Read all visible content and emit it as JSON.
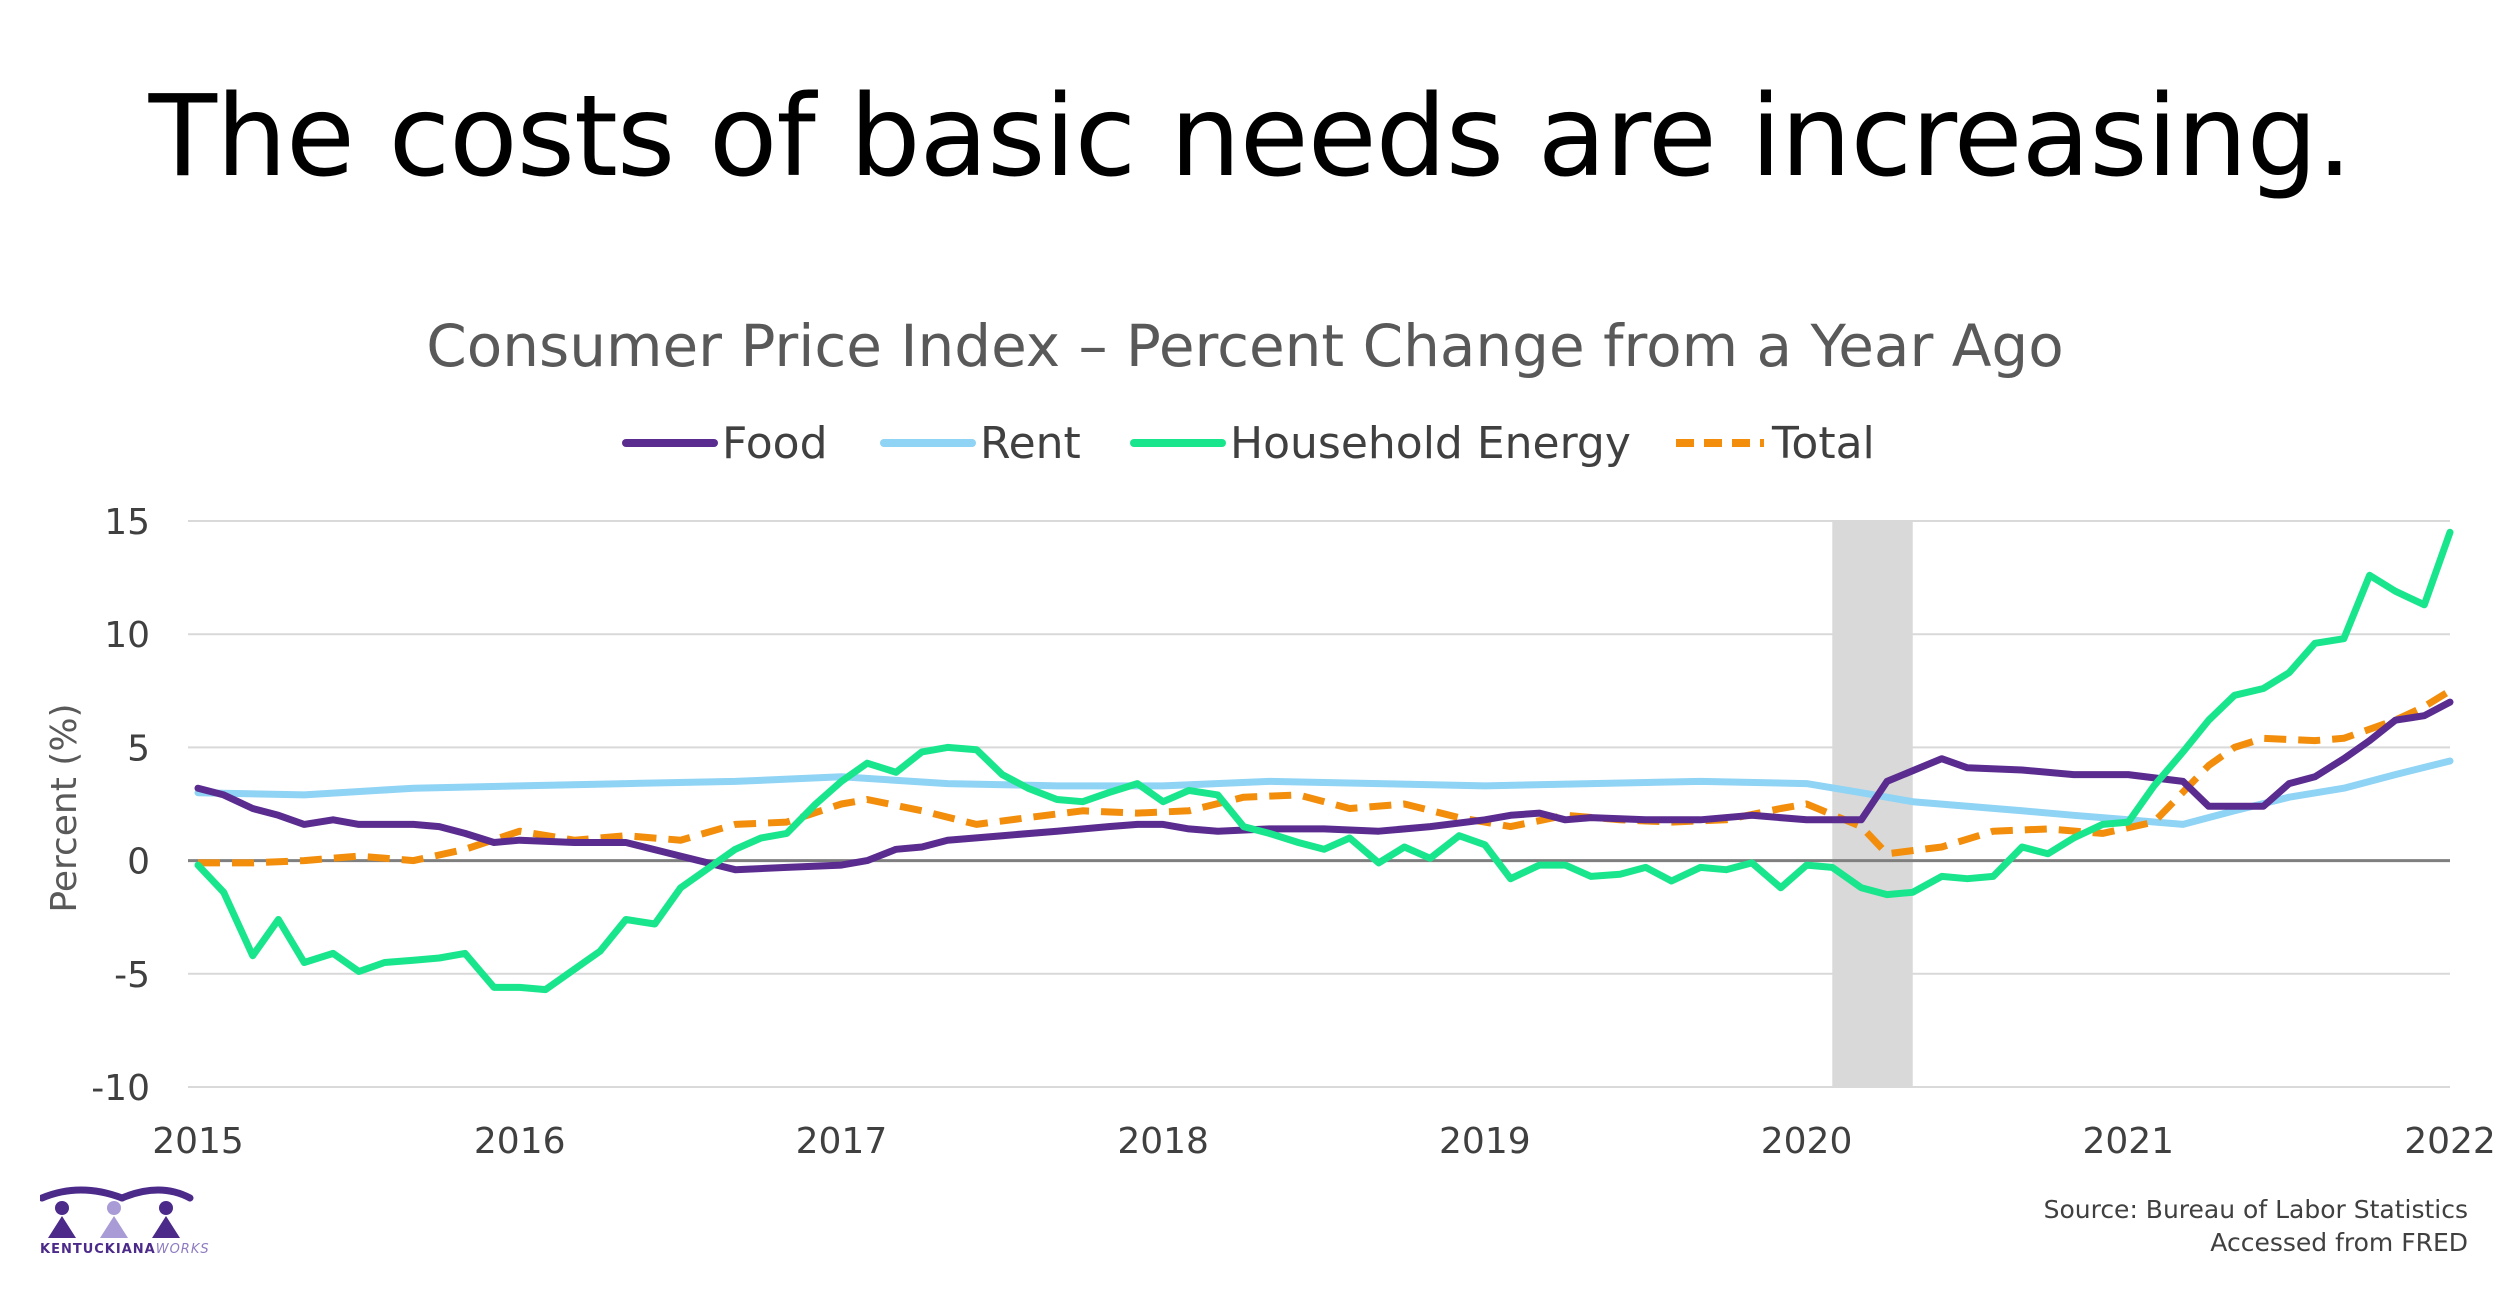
{
  "slide": {
    "headline": "The costs of basic needs are increasing.",
    "source_line1": "Source: Bureau of Labor Statistics",
    "source_line2": "Accessed from FRED",
    "logo_text_main": "KENTUCKIANA",
    "logo_text_accent": "WORKS"
  },
  "chart_data": {
    "type": "line",
    "title": "Consumer Price Index – Percent Change from a Year Ago",
    "ylabel": "Percent (%)",
    "xlabel": "",
    "ylim": [
      -10,
      15
    ],
    "yticks": [
      -10,
      -5,
      0,
      5,
      10,
      15
    ],
    "xlim": [
      2015,
      2022
    ],
    "xticks": [
      2015,
      2016,
      2017,
      2018,
      2019,
      2020,
      2021,
      2022
    ],
    "grid": true,
    "legend": "top",
    "shaded_period": [
      2020.08,
      2020.33
    ],
    "shaded_color": "#d9d9d9",
    "series": [
      {
        "name": "Food",
        "color": "#5b2c8f",
        "dash": false,
        "x": [
          2015.0,
          2015.08,
          2015.17,
          2015.25,
          2015.33,
          2015.42,
          2015.5,
          2015.58,
          2015.67,
          2015.75,
          2015.83,
          2015.92,
          2016.0,
          2016.17,
          2016.33,
          2016.5,
          2016.67,
          2016.83,
          2017.0,
          2017.08,
          2017.17,
          2017.25,
          2017.33,
          2017.5,
          2017.67,
          2017.83,
          2017.92,
          2018.0,
          2018.08,
          2018.17,
          2018.33,
          2018.5,
          2018.67,
          2018.83,
          2019.0,
          2019.08,
          2019.17,
          2019.25,
          2019.33,
          2019.5,
          2019.67,
          2019.83,
          2020.0,
          2020.17,
          2020.25,
          2020.42,
          2020.5,
          2020.67,
          2020.83,
          2021.0,
          2021.17,
          2021.25,
          2021.42,
          2021.5,
          2021.58,
          2021.67,
          2021.75,
          2021.83,
          2021.92,
          2022.0
        ],
        "y": [
          3.2,
          2.9,
          2.3,
          2.0,
          1.6,
          1.8,
          1.6,
          1.6,
          1.6,
          1.5,
          1.2,
          0.8,
          0.9,
          0.8,
          0.8,
          0.2,
          -0.4,
          -0.3,
          -0.2,
          0.0,
          0.5,
          0.6,
          0.9,
          1.1,
          1.3,
          1.5,
          1.6,
          1.6,
          1.4,
          1.3,
          1.4,
          1.4,
          1.3,
          1.5,
          1.8,
          2.0,
          2.1,
          1.8,
          1.9,
          1.8,
          1.8,
          2.0,
          1.8,
          1.8,
          3.5,
          4.5,
          4.1,
          4.0,
          3.8,
          3.8,
          3.5,
          2.4,
          2.4,
          3.4,
          3.7,
          4.5,
          5.3,
          6.2,
          6.4,
          7.0
        ]
      },
      {
        "name": "Rent",
        "color": "#8fd3f5",
        "dash": false,
        "x": [
          2015.0,
          2015.33,
          2015.67,
          2016.0,
          2016.33,
          2016.67,
          2017.0,
          2017.33,
          2017.67,
          2018.0,
          2018.33,
          2018.67,
          2019.0,
          2019.33,
          2019.67,
          2020.0,
          2020.17,
          2020.33,
          2020.5,
          2020.67,
          2020.83,
          2021.0,
          2021.17,
          2021.33,
          2021.5,
          2021.67,
          2021.83,
          2022.0
        ],
        "y": [
          3.0,
          2.9,
          3.2,
          3.3,
          3.4,
          3.5,
          3.7,
          3.4,
          3.3,
          3.3,
          3.5,
          3.4,
          3.3,
          3.4,
          3.5,
          3.4,
          3.0,
          2.6,
          2.4,
          2.2,
          2.0,
          1.8,
          1.6,
          2.2,
          2.8,
          3.2,
          3.8,
          4.4
        ]
      },
      {
        "name": "Household Energy",
        "color": "#19e68c",
        "dash": false,
        "x": [
          2015.0,
          2015.08,
          2015.17,
          2015.25,
          2015.33,
          2015.42,
          2015.5,
          2015.58,
          2015.67,
          2015.75,
          2015.83,
          2015.92,
          2016.0,
          2016.08,
          2016.17,
          2016.25,
          2016.33,
          2016.42,
          2016.5,
          2016.58,
          2016.67,
          2016.75,
          2016.83,
          2016.92,
          2017.0,
          2017.08,
          2017.17,
          2017.25,
          2017.33,
          2017.42,
          2017.5,
          2017.58,
          2017.67,
          2017.75,
          2017.83,
          2017.92,
          2018.0,
          2018.08,
          2018.17,
          2018.25,
          2018.33,
          2018.42,
          2018.5,
          2018.58,
          2018.67,
          2018.75,
          2018.83,
          2018.92,
          2019.0,
          2019.08,
          2019.17,
          2019.25,
          2019.33,
          2019.42,
          2019.5,
          2019.58,
          2019.67,
          2019.75,
          2019.83,
          2019.92,
          2020.0,
          2020.08,
          2020.17,
          2020.25,
          2020.33,
          2020.42,
          2020.5,
          2020.58,
          2020.67,
          2020.75,
          2020.83,
          2020.92,
          2021.0,
          2021.08,
          2021.17,
          2021.25,
          2021.33,
          2021.42,
          2021.5,
          2021.58,
          2021.67,
          2021.75,
          2021.83,
          2021.92,
          2022.0
        ],
        "y": [
          -0.2,
          -1.4,
          -4.2,
          -2.6,
          -4.5,
          -4.1,
          -4.9,
          -4.5,
          -4.4,
          -4.3,
          -4.1,
          -5.6,
          -5.6,
          -5.7,
          -4.8,
          -4.0,
          -2.6,
          -2.8,
          -1.2,
          -0.4,
          0.5,
          1.0,
          1.2,
          2.5,
          3.5,
          4.3,
          3.9,
          4.8,
          5.0,
          4.9,
          3.8,
          3.2,
          2.7,
          2.6,
          3.0,
          3.4,
          2.6,
          3.1,
          2.9,
          1.5,
          1.2,
          0.8,
          0.5,
          1.0,
          -0.1,
          0.6,
          0.1,
          1.1,
          0.7,
          -0.8,
          -0.2,
          -0.2,
          -0.7,
          -0.6,
          -0.3,
          -0.9,
          -0.3,
          -0.4,
          -0.1,
          -1.2,
          -0.2,
          -0.3,
          -1.2,
          -1.5,
          -1.4,
          -0.7,
          -0.8,
          -0.7,
          0.6,
          0.3,
          1.0,
          1.6,
          1.7,
          3.3,
          4.8,
          6.2,
          7.3,
          7.6,
          8.3,
          9.6,
          9.8,
          12.6,
          11.9,
          11.3,
          14.5
        ]
      },
      {
        "name": "Total",
        "color": "#f28e0c",
        "dash": true,
        "x": [
          2015.0,
          2015.17,
          2015.33,
          2015.5,
          2015.67,
          2015.83,
          2016.0,
          2016.17,
          2016.33,
          2016.5,
          2016.67,
          2016.83,
          2017.0,
          2017.08,
          2017.25,
          2017.42,
          2017.58,
          2017.75,
          2017.92,
          2018.08,
          2018.25,
          2018.42,
          2018.58,
          2018.75,
          2018.92,
          2019.08,
          2019.25,
          2019.42,
          2019.58,
          2019.75,
          2019.92,
          2020.0,
          2020.17,
          2020.25,
          2020.42,
          2020.58,
          2020.75,
          2020.92,
          2021.08,
          2021.25,
          2021.33,
          2021.42,
          2021.58,
          2021.67,
          2021.83,
          2021.92,
          2022.0
        ],
        "y": [
          -0.1,
          -0.1,
          0.0,
          0.2,
          0.0,
          0.5,
          1.3,
          0.9,
          1.1,
          0.9,
          1.6,
          1.7,
          2.5,
          2.7,
          2.2,
          1.6,
          1.9,
          2.2,
          2.1,
          2.2,
          2.8,
          2.9,
          2.3,
          2.5,
          1.9,
          1.5,
          2.0,
          1.8,
          1.7,
          1.8,
          2.3,
          2.5,
          1.5,
          0.3,
          0.6,
          1.3,
          1.4,
          1.2,
          1.7,
          4.2,
          5.0,
          5.4,
          5.3,
          5.4,
          6.2,
          6.8,
          7.5
        ]
      }
    ]
  }
}
